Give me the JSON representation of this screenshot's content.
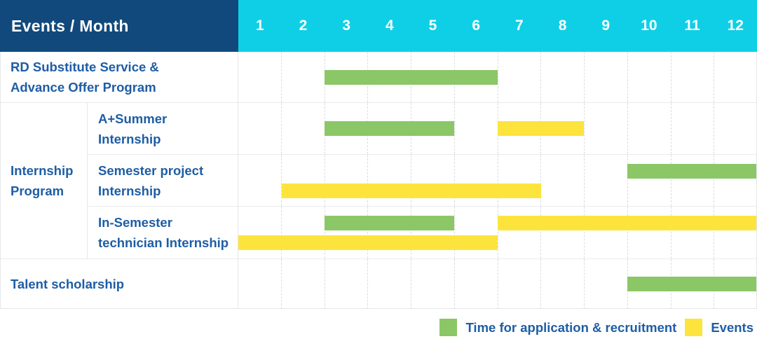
{
  "header": {
    "title": "Events / Month",
    "months": [
      "1",
      "2",
      "3",
      "4",
      "5",
      "6",
      "7",
      "8",
      "9",
      "10",
      "11",
      "12"
    ]
  },
  "labels": {
    "rd": [
      "RD Substitute Service &",
      "Advance Offer Program"
    ],
    "group": [
      "Internship",
      "Program"
    ],
    "a_summer": [
      "A+Summer",
      "Internship"
    ],
    "semester": [
      "Semester project",
      "Internship"
    ],
    "in_semester": [
      "In-Semester",
      "technician Internship"
    ],
    "talent": [
      "Talent scholarship"
    ]
  },
  "legend": {
    "items": [
      {
        "key": "application",
        "label": "Time for application & recruitment",
        "color": "#8bc766"
      },
      {
        "key": "events",
        "label": "Events",
        "color": "#fde43c"
      }
    ]
  },
  "colors": {
    "header_navy": "#11497c",
    "header_cyan": "#0fcfe6",
    "label_blue": "#1e5da5",
    "bar_green": "#8bc766",
    "bar_yellow": "#fde43c"
  },
  "chart_data": {
    "type": "bar",
    "variant": "gantt",
    "title": "Events / Month",
    "xlabel": "Month",
    "x_ticks": [
      1,
      2,
      3,
      4,
      5,
      6,
      7,
      8,
      9,
      10,
      11,
      12
    ],
    "x_range": [
      1,
      12
    ],
    "grid": "vertical-dashed",
    "legend_position": "bottom-right",
    "series_colors": {
      "application": "#8bc766",
      "events": "#fde43c"
    },
    "series_names": {
      "application": "Time for application & recruitment",
      "events": "Events"
    },
    "rows": [
      {
        "group": null,
        "label": "RD Substitute Service & Advance Offer Program",
        "bars": [
          {
            "type": "application",
            "start_month": 3,
            "end_month": 6,
            "lane": "center"
          }
        ]
      },
      {
        "group": "Internship Program",
        "label": "A+Summer Internship",
        "bars": [
          {
            "type": "application",
            "start_month": 3,
            "end_month": 5,
            "lane": "center"
          },
          {
            "type": "events",
            "start_month": 7,
            "end_month": 8,
            "lane": "center"
          }
        ]
      },
      {
        "group": "Internship Program",
        "label": "Semester project Internship",
        "bars": [
          {
            "type": "application",
            "start_month": 10,
            "end_month": 12,
            "lane": "top"
          },
          {
            "type": "events",
            "start_month": 2,
            "end_month": 7,
            "lane": "bottom"
          }
        ]
      },
      {
        "group": "Internship Program",
        "label": "In-Semester technician Internship",
        "bars": [
          {
            "type": "application",
            "start_month": 3,
            "end_month": 5,
            "lane": "top"
          },
          {
            "type": "events",
            "start_month": 7,
            "end_month": 12,
            "lane": "top"
          },
          {
            "type": "events",
            "start_month": 1,
            "end_month": 6,
            "lane": "bottom"
          }
        ]
      },
      {
        "group": null,
        "label": "Talent scholarship",
        "bars": [
          {
            "type": "application",
            "start_month": 10,
            "end_month": 12,
            "lane": "center"
          }
        ]
      }
    ]
  }
}
